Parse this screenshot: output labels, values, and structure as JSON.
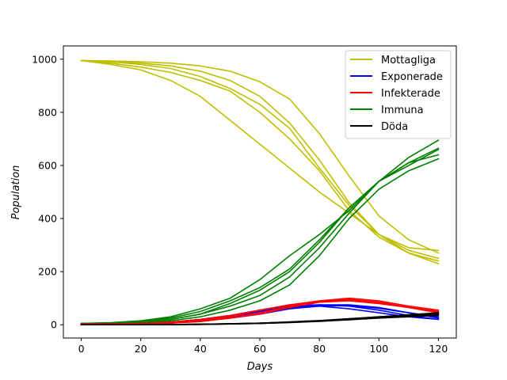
{
  "chart_data": {
    "type": "line",
    "title": "",
    "xlabel": "Days",
    "ylabel": "Population",
    "xlim": [
      -6,
      126
    ],
    "ylim": [
      -50,
      1050
    ],
    "xticks": [
      0,
      20,
      40,
      60,
      80,
      100,
      120
    ],
    "yticks": [
      0,
      200,
      400,
      600,
      800,
      1000
    ],
    "grid": false,
    "legend_position": "top-right",
    "legend": [
      {
        "label": "Mottagliga",
        "color": "#bfbf00"
      },
      {
        "label": "Exponerade",
        "color": "#0000ff"
      },
      {
        "label": "Infekterade",
        "color": "#ff0000"
      },
      {
        "label": "Immuna",
        "color": "#008000"
      },
      {
        "label": "Döda",
        "color": "#000000"
      }
    ],
    "series": [
      {
        "group": "Mottagliga",
        "color": "#bfbf00",
        "x": [
          0,
          10,
          20,
          30,
          40,
          50,
          60,
          70,
          80,
          90,
          100,
          110,
          120
        ],
        "y": [
          995,
          993,
          990,
          985,
          975,
          955,
          915,
          850,
          720,
          560,
          410,
          320,
          270
        ]
      },
      {
        "group": "Mottagliga",
        "color": "#bfbf00",
        "x": [
          0,
          10,
          20,
          30,
          40,
          50,
          60,
          70,
          80,
          90,
          100,
          110,
          120
        ],
        "y": [
          995,
          990,
          985,
          975,
          955,
          920,
          860,
          760,
          620,
          460,
          340,
          290,
          280
        ]
      },
      {
        "group": "Mottagliga",
        "color": "#bfbf00",
        "x": [
          0,
          10,
          20,
          30,
          40,
          50,
          60,
          70,
          80,
          90,
          100,
          110,
          120
        ],
        "y": [
          995,
          985,
          970,
          950,
          920,
          880,
          800,
          700,
          580,
          430,
          330,
          270,
          240
        ]
      },
      {
        "group": "Mottagliga",
        "color": "#bfbf00",
        "x": [
          0,
          10,
          20,
          30,
          40,
          50,
          60,
          70,
          80,
          90,
          100,
          110,
          120
        ],
        "y": [
          995,
          990,
          980,
          965,
          935,
          890,
          830,
          740,
          590,
          450,
          340,
          280,
          250
        ]
      },
      {
        "group": "Mottagliga",
        "color": "#bfbf00",
        "x": [
          0,
          10,
          20,
          30,
          40,
          50,
          60,
          70,
          80,
          90,
          100,
          110,
          120
        ],
        "y": [
          995,
          980,
          960,
          920,
          860,
          770,
          680,
          590,
          500,
          420,
          340,
          270,
          230
        ]
      },
      {
        "group": "Immuna",
        "color": "#008000",
        "x": [
          0,
          10,
          20,
          30,
          40,
          50,
          60,
          70,
          80,
          90,
          100,
          110,
          120
        ],
        "y": [
          5,
          8,
          15,
          30,
          60,
          100,
          170,
          260,
          340,
          430,
          540,
          630,
          695
        ]
      },
      {
        "group": "Immuna",
        "color": "#008000",
        "x": [
          0,
          10,
          20,
          30,
          40,
          50,
          60,
          70,
          80,
          90,
          100,
          110,
          120
        ],
        "y": [
          5,
          6,
          10,
          20,
          40,
          80,
          130,
          200,
          310,
          440,
          540,
          600,
          660
        ]
      },
      {
        "group": "Immuna",
        "color": "#008000",
        "x": [
          0,
          10,
          20,
          30,
          40,
          50,
          60,
          70,
          80,
          90,
          100,
          110,
          120
        ],
        "y": [
          5,
          6,
          10,
          20,
          40,
          70,
          110,
          180,
          290,
          420,
          540,
          610,
          640
        ]
      },
      {
        "group": "Immuna",
        "color": "#008000",
        "x": [
          0,
          10,
          20,
          30,
          40,
          50,
          60,
          70,
          80,
          90,
          100,
          110,
          120
        ],
        "y": [
          5,
          5,
          8,
          15,
          30,
          55,
          90,
          150,
          260,
          400,
          510,
          580,
          625
        ]
      },
      {
        "group": "Immuna",
        "color": "#008000",
        "x": [
          0,
          10,
          20,
          30,
          40,
          50,
          60,
          70,
          80,
          90,
          100,
          110,
          120
        ],
        "y": [
          5,
          7,
          12,
          25,
          50,
          90,
          140,
          210,
          320,
          440,
          540,
          610,
          665
        ]
      },
      {
        "group": "Exponerade",
        "color": "#0000ff",
        "x": [
          0,
          10,
          20,
          30,
          40,
          50,
          60,
          70,
          80,
          90,
          100,
          110,
          120
        ],
        "y": [
          2,
          2,
          4,
          10,
          20,
          35,
          55,
          72,
          75,
          70,
          55,
          35,
          20
        ]
      },
      {
        "group": "Exponerade",
        "color": "#0000ff",
        "x": [
          0,
          10,
          20,
          30,
          40,
          50,
          60,
          70,
          80,
          90,
          100,
          110,
          120
        ],
        "y": [
          2,
          2,
          3,
          6,
          15,
          30,
          50,
          65,
          75,
          75,
          65,
          45,
          30
        ]
      },
      {
        "group": "Exponerade",
        "color": "#0000ff",
        "x": [
          0,
          10,
          20,
          30,
          40,
          50,
          60,
          70,
          80,
          90,
          100,
          110,
          120
        ],
        "y": [
          2,
          2,
          3,
          8,
          15,
          25,
          40,
          60,
          70,
          72,
          62,
          45,
          25
        ]
      },
      {
        "group": "Exponerade",
        "color": "#0000ff",
        "x": [
          0,
          10,
          20,
          30,
          40,
          50,
          60,
          70,
          80,
          90,
          100,
          110,
          120
        ],
        "y": [
          2,
          3,
          5,
          10,
          20,
          35,
          55,
          65,
          70,
          60,
          45,
          30,
          20
        ]
      },
      {
        "group": "Infekterade",
        "color": "#ff0000",
        "x": [
          0,
          10,
          20,
          30,
          40,
          50,
          60,
          70,
          80,
          90,
          100,
          110,
          120
        ],
        "y": [
          3,
          3,
          5,
          10,
          20,
          35,
          55,
          75,
          90,
          95,
          85,
          65,
          50
        ]
      },
      {
        "group": "Infekterade",
        "color": "#ff0000",
        "x": [
          0,
          10,
          20,
          30,
          40,
          50,
          60,
          70,
          80,
          90,
          100,
          110,
          120
        ],
        "y": [
          3,
          3,
          4,
          8,
          15,
          25,
          45,
          70,
          90,
          100,
          90,
          70,
          55
        ]
      },
      {
        "group": "Infekterade",
        "color": "#ff0000",
        "x": [
          0,
          10,
          20,
          30,
          40,
          50,
          60,
          70,
          80,
          90,
          100,
          110,
          120
        ],
        "y": [
          3,
          3,
          5,
          8,
          15,
          30,
          55,
          75,
          85,
          95,
          85,
          65,
          45
        ]
      },
      {
        "group": "Infekterade",
        "color": "#ff0000",
        "x": [
          0,
          10,
          20,
          30,
          40,
          50,
          60,
          70,
          80,
          90,
          100,
          110,
          120
        ],
        "y": [
          3,
          3,
          4,
          6,
          12,
          25,
          40,
          65,
          85,
          90,
          80,
          65,
          50
        ]
      },
      {
        "group": "Döda",
        "color": "#000000",
        "x": [
          0,
          10,
          20,
          30,
          40,
          50,
          60,
          70,
          80,
          90,
          100,
          110,
          120
        ],
        "y": [
          0,
          0,
          0,
          1,
          2,
          4,
          6,
          10,
          15,
          22,
          30,
          38,
          45
        ]
      },
      {
        "group": "Döda",
        "color": "#000000",
        "x": [
          0,
          10,
          20,
          30,
          40,
          50,
          60,
          70,
          80,
          90,
          100,
          110,
          120
        ],
        "y": [
          0,
          0,
          0,
          1,
          2,
          3,
          5,
          9,
          14,
          20,
          27,
          33,
          38
        ]
      },
      {
        "group": "Döda",
        "color": "#000000",
        "x": [
          0,
          10,
          20,
          30,
          40,
          50,
          60,
          70,
          80,
          90,
          100,
          110,
          120
        ],
        "y": [
          0,
          0,
          0,
          1,
          1,
          3,
          5,
          8,
          13,
          19,
          25,
          30,
          35
        ]
      },
      {
        "group": "Döda",
        "color": "#000000",
        "x": [
          0,
          10,
          20,
          30,
          40,
          50,
          60,
          70,
          80,
          90,
          100,
          110,
          120
        ],
        "y": [
          0,
          0,
          0,
          1,
          2,
          3,
          6,
          10,
          15,
          21,
          28,
          35,
          40
        ]
      },
      {
        "group": "Döda",
        "color": "#000000",
        "x": [
          0,
          10,
          20,
          30,
          40,
          50,
          60,
          70,
          80,
          90,
          100,
          110,
          120
        ],
        "y": [
          0,
          0,
          0,
          1,
          2,
          4,
          6,
          11,
          16,
          23,
          30,
          36,
          42
        ]
      }
    ]
  }
}
